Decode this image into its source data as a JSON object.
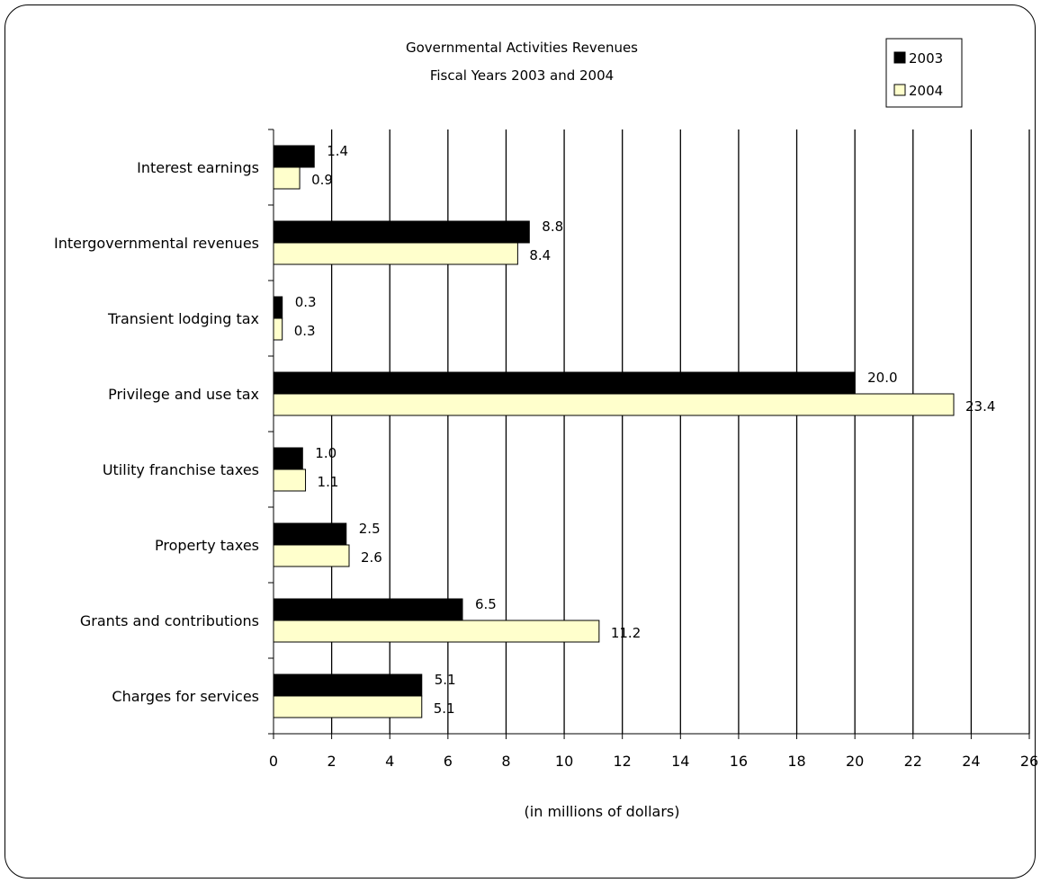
{
  "chart_data": {
    "type": "bar",
    "orientation": "horizontal",
    "title": "Governmental Activities Revenues",
    "subtitle": "Fiscal Years 2003 and 2004",
    "xlabel": "(in millions of dollars)",
    "ylabel": "",
    "xlim": [
      0,
      26
    ],
    "xticks": [
      "0",
      "2",
      "4",
      "6",
      "8",
      "10",
      "12",
      "14",
      "16",
      "18",
      "20",
      "22",
      "24",
      "26"
    ],
    "grid": "vertical",
    "legend_position": "top-right",
    "categories": [
      "Interest earnings",
      "Intergovernmental revenues",
      "Transient lodging tax",
      "Privilege and use tax",
      "Utility franchise taxes",
      "Property taxes",
      "Grants and contributions",
      "Charges for services"
    ],
    "series": [
      {
        "name": "2003",
        "color": "#000000",
        "values": [
          1.4,
          8.8,
          0.3,
          20.0,
          1.0,
          2.5,
          6.5,
          5.1
        ],
        "labels": [
          "1.4",
          "8.8",
          "0.3",
          "20.0",
          "1.0",
          "2.5",
          "6.5",
          "5.1"
        ]
      },
      {
        "name": "2004",
        "color": "#ffffcc",
        "values": [
          0.9,
          8.4,
          0.3,
          23.4,
          1.1,
          2.6,
          11.2,
          5.1
        ],
        "labels": [
          "0.9",
          "8.4",
          "0.3",
          "23.4",
          "1.1",
          "2.6",
          "11.2",
          "5.1"
        ]
      }
    ]
  }
}
